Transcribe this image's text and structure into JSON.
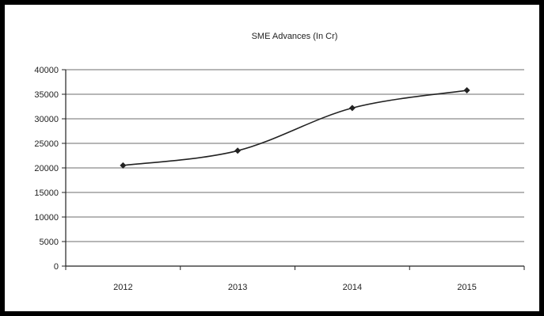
{
  "chart_data": {
    "type": "line",
    "title": "SME Advances (In Cr)",
    "xlabel": "",
    "ylabel": "",
    "categories": [
      "2012",
      "2013",
      "2014",
      "2015"
    ],
    "series": [
      {
        "values": [
          20500,
          23500,
          32200,
          35800
        ]
      }
    ],
    "ylim": [
      0,
      40000
    ],
    "yticks": [
      "40000",
      "35000",
      "30000",
      "25000",
      "20000",
      "15000",
      "10000",
      "5000",
      "0"
    ],
    "grid": true,
    "legend": "none"
  },
  "colors": {
    "line": "#222222",
    "grid": "#8a8a8a",
    "axis": "#222222",
    "frame": "#000000"
  }
}
